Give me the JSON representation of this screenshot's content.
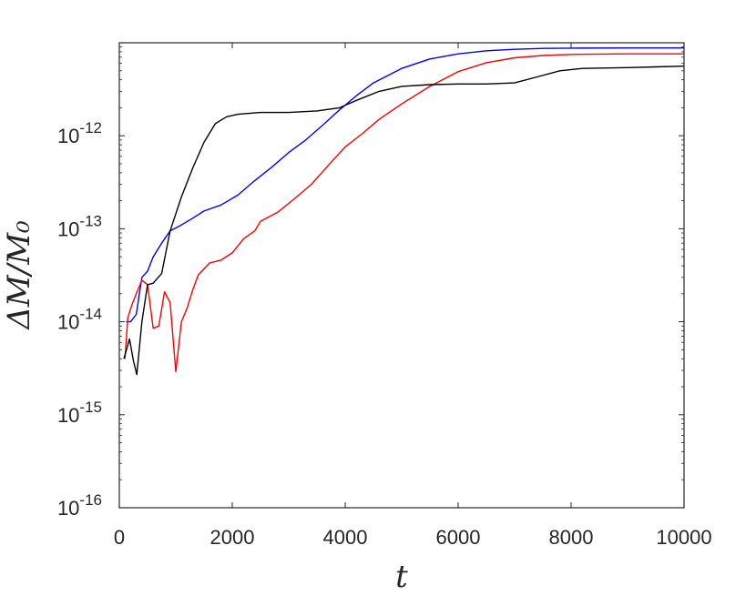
{
  "chart_data": {
    "type": "line",
    "title": "",
    "xlabel": "t",
    "ylabel": "ΔM/M₀",
    "xlim": [
      0,
      10000
    ],
    "ylim": [
      1e-16,
      1e-11
    ],
    "yscale": "log",
    "grid": false,
    "legend": "none",
    "x_ticks": [
      0,
      2000,
      4000,
      6000,
      8000,
      10000
    ],
    "x_tick_labels": [
      "0",
      "2000",
      "4000",
      "6000",
      "8000",
      "10000"
    ],
    "y_ticks": [
      1e-16,
      1e-15,
      1e-14,
      1e-13,
      1e-12
    ],
    "y_tick_labels": [
      {
        "base": "10",
        "exp": "-16"
      },
      {
        "base": "10",
        "exp": "-15"
      },
      {
        "base": "10",
        "exp": "-14"
      },
      {
        "base": "10",
        "exp": "-13"
      },
      {
        "base": "10",
        "exp": "-12"
      }
    ],
    "series": [
      {
        "color": "#0000ff",
        "points": [
          [
            120,
            1e-14
          ],
          [
            200,
            1e-14
          ],
          [
            300,
            1.2e-14
          ],
          [
            400,
            3e-14
          ],
          [
            500,
            3.5e-14
          ],
          [
            600,
            5e-14
          ],
          [
            750,
            7e-14
          ],
          [
            900,
            9.5e-14
          ],
          [
            1100,
            1.1e-13
          ],
          [
            1300,
            1.3e-13
          ],
          [
            1500,
            1.55e-13
          ],
          [
            1800,
            1.8e-13
          ],
          [
            2100,
            2.3e-13
          ],
          [
            2400,
            3.3e-13
          ],
          [
            2700,
            4.6e-13
          ],
          [
            3000,
            6.6e-13
          ],
          [
            3300,
            9e-13
          ],
          [
            3600,
            1.3e-12
          ],
          [
            3900,
            1.9e-12
          ],
          [
            4200,
            2.7e-12
          ],
          [
            4500,
            3.7e-12
          ],
          [
            5000,
            5.3e-12
          ],
          [
            5500,
            6.7e-12
          ],
          [
            6000,
            7.6e-12
          ],
          [
            6500,
            8.2e-12
          ],
          [
            7000,
            8.5e-12
          ],
          [
            7500,
            8.7e-12
          ],
          [
            8000,
            8.75e-12
          ],
          [
            9000,
            8.8e-12
          ],
          [
            10000,
            8.8e-12
          ]
        ]
      },
      {
        "color": "#ff0000",
        "points": [
          [
            100,
            4e-15
          ],
          [
            150,
            1.1e-14
          ],
          [
            220,
            1.5e-14
          ],
          [
            300,
            2e-14
          ],
          [
            400,
            2.8e-14
          ],
          [
            500,
            2.5e-14
          ],
          [
            600,
            8.5e-15
          ],
          [
            700,
            9e-15
          ],
          [
            800,
            2.1e-14
          ],
          [
            900,
            1.6e-14
          ],
          [
            1000,
            2.9e-15
          ],
          [
            1100,
            1e-14
          ],
          [
            1200,
            1.4e-14
          ],
          [
            1300,
            2.2e-14
          ],
          [
            1400,
            3.2e-14
          ],
          [
            1600,
            4.3e-14
          ],
          [
            1800,
            4.6e-14
          ],
          [
            2000,
            5.5e-14
          ],
          [
            2200,
            7.8e-14
          ],
          [
            2400,
            9.5e-14
          ],
          [
            2500,
            1.2e-13
          ],
          [
            2800,
            1.5e-13
          ],
          [
            3100,
            2.1e-13
          ],
          [
            3400,
            3e-13
          ],
          [
            3700,
            4.8e-13
          ],
          [
            4000,
            7.6e-13
          ],
          [
            4300,
            1.05e-12
          ],
          [
            4600,
            1.5e-12
          ],
          [
            5000,
            2.2e-12
          ],
          [
            5500,
            3.4e-12
          ],
          [
            6000,
            4.9e-12
          ],
          [
            6500,
            6.1e-12
          ],
          [
            7000,
            6.9e-12
          ],
          [
            7500,
            7.3e-12
          ],
          [
            8000,
            7.5e-12
          ],
          [
            9000,
            7.6e-12
          ],
          [
            10000,
            7.6e-12
          ]
        ]
      },
      {
        "color": "#000000",
        "points": [
          [
            80,
            4e-15
          ],
          [
            180,
            6.5e-15
          ],
          [
            250,
            3.8e-15
          ],
          [
            310,
            2.7e-15
          ],
          [
            400,
            1e-14
          ],
          [
            500,
            2.5e-14
          ],
          [
            600,
            2.6e-14
          ],
          [
            750,
            3.3e-14
          ],
          [
            900,
            9.5e-14
          ],
          [
            1100,
            2.2e-13
          ],
          [
            1300,
            4.5e-13
          ],
          [
            1500,
            8.5e-13
          ],
          [
            1700,
            1.35e-12
          ],
          [
            1900,
            1.6e-12
          ],
          [
            2100,
            1.7e-12
          ],
          [
            2500,
            1.78e-12
          ],
          [
            3000,
            1.78e-12
          ],
          [
            3500,
            1.85e-12
          ],
          [
            3900,
            2e-12
          ],
          [
            4200,
            2.4e-12
          ],
          [
            4600,
            3e-12
          ],
          [
            5000,
            3.4e-12
          ],
          [
            5500,
            3.55e-12
          ],
          [
            6000,
            3.6e-12
          ],
          [
            6500,
            3.6e-12
          ],
          [
            7000,
            3.7e-12
          ],
          [
            7400,
            4.3e-12
          ],
          [
            7800,
            5e-12
          ],
          [
            8200,
            5.3e-12
          ],
          [
            9000,
            5.4e-12
          ],
          [
            9500,
            5.5e-12
          ],
          [
            10000,
            5.6e-12
          ]
        ]
      }
    ]
  }
}
